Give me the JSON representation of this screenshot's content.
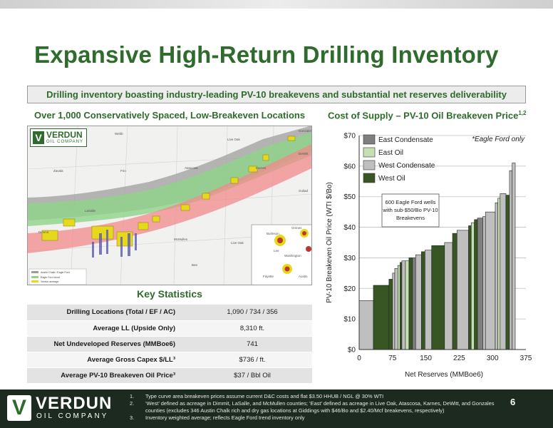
{
  "title": "Expansive High-Return Drilling Inventory",
  "subtitle": "Drilling inventory boasting industry-leading PV-10 breakevens and substantial net reserves deliverability",
  "left_header": "Over 1,000 Conservatively Spaced, Low-Breakeven Locations",
  "right_header": "Cost of Supply – PV-10 Oil Breakeven Price",
  "right_header_sup": "1,2",
  "map": {
    "logo_name": "VERDUN",
    "logo_sub": "OIL COMPANY",
    "labels": [
      "Webb",
      "Dimmit",
      "LaSalle",
      "McMullen",
      "Live Oak",
      "Karnes",
      "Atascosa",
      "Frio",
      "Zavala",
      "DeWitt",
      "Goliad",
      "Gonzales",
      "Bee",
      "Lee",
      "Burleson",
      "Washington",
      "Fayette",
      "Austin",
      "Grimes",
      "Lavaca"
    ],
    "legend": [
      "Austin Chalk / Eagle Ford",
      "Eagle Ford trend",
      "Verdun acreage"
    ]
  },
  "key_stats": {
    "title": "Key Statistics",
    "rows": [
      {
        "label": "Drilling Locations (Total / EF / AC)",
        "value": "1,090 / 734 / 356"
      },
      {
        "label": "Average LL (Upside Only)",
        "value": "8,310 ft."
      },
      {
        "label": "Net Undeveloped Reserves (MMBoe6)",
        "value": "741"
      },
      {
        "label": "Average Gross Capex $/LL³",
        "value": "$736 / ft."
      },
      {
        "label": "Average PV-10 Breakeven Oil Price³",
        "value": "$37 / Bbl Oil"
      }
    ]
  },
  "chart_data": {
    "type": "bar",
    "ylabel": "PV-10 Breakeven Oil Price (WTI $/Bo)",
    "xlabel": "Net Reserves (MMBoe6)",
    "ylim": [
      0,
      70
    ],
    "xlim": [
      0,
      375
    ],
    "yticks": [
      "$0",
      "$10",
      "$20",
      "$30",
      "$40",
      "$50",
      "$60",
      "$70"
    ],
    "xticks": [
      "0",
      "75",
      "150",
      "225",
      "300",
      "375"
    ],
    "annotation_note": "*Eagle Ford only",
    "callout": "600 Eagle Ford wells with sub-$50/Bo PV-10 Breakevens",
    "series": [
      {
        "name": "East Condensate",
        "color": "#7f7f7f"
      },
      {
        "name": "East Oil",
        "color": "#c6e0b4"
      },
      {
        "name": "West Condensate",
        "color": "#bfbfbf"
      },
      {
        "name": "West Oil",
        "color": "#375623"
      }
    ],
    "bars": [
      {
        "x0": 0,
        "x1": 32,
        "y": 16,
        "s": 2
      },
      {
        "x0": 32,
        "x1": 67,
        "y": 21,
        "s": 3
      },
      {
        "x0": 67,
        "x1": 75,
        "y": 23,
        "s": 3
      },
      {
        "x0": 75,
        "x1": 80,
        "y": 25,
        "s": 2
      },
      {
        "x0": 80,
        "x1": 87,
        "y": 26.5,
        "s": 2
      },
      {
        "x0": 87,
        "x1": 92,
        "y": 27.5,
        "s": 1
      },
      {
        "x0": 92,
        "x1": 96,
        "y": 28.5,
        "s": 3
      },
      {
        "x0": 96,
        "x1": 104,
        "y": 29,
        "s": 2
      },
      {
        "x0": 104,
        "x1": 112,
        "y": 29,
        "s": 1
      },
      {
        "x0": 112,
        "x1": 120,
        "y": 30,
        "s": 3
      },
      {
        "x0": 120,
        "x1": 127,
        "y": 30,
        "s": 0
      },
      {
        "x0": 127,
        "x1": 140,
        "y": 31,
        "s": 2
      },
      {
        "x0": 140,
        "x1": 148,
        "y": 32,
        "s": 3
      },
      {
        "x0": 148,
        "x1": 163,
        "y": 32.5,
        "s": 2
      },
      {
        "x0": 163,
        "x1": 192,
        "y": 34,
        "s": 3
      },
      {
        "x0": 192,
        "x1": 210,
        "y": 35,
        "s": 2
      },
      {
        "x0": 210,
        "x1": 220,
        "y": 38,
        "s": 3
      },
      {
        "x0": 220,
        "x1": 246,
        "y": 39,
        "s": 2
      },
      {
        "x0": 246,
        "x1": 252,
        "y": 40.5,
        "s": 3
      },
      {
        "x0": 252,
        "x1": 259,
        "y": 41.5,
        "s": 1
      },
      {
        "x0": 259,
        "x1": 266,
        "y": 42.5,
        "s": 3
      },
      {
        "x0": 266,
        "x1": 278,
        "y": 43,
        "s": 0
      },
      {
        "x0": 278,
        "x1": 284,
        "y": 43.5,
        "s": 2
      },
      {
        "x0": 284,
        "x1": 306,
        "y": 45,
        "s": 2
      },
      {
        "x0": 306,
        "x1": 312,
        "y": 48,
        "s": 2
      },
      {
        "x0": 312,
        "x1": 317,
        "y": 49.5,
        "s": 1
      },
      {
        "x0": 317,
        "x1": 330,
        "y": 51,
        "s": 2
      },
      {
        "x0": 330,
        "x1": 338,
        "y": 50.5,
        "s": 3
      },
      {
        "x0": 338,
        "x1": 344,
        "y": 58.5,
        "s": 2
      },
      {
        "x0": 344,
        "x1": 351,
        "y": 61,
        "s": 2
      }
    ]
  },
  "footer": {
    "logo_name": "VERDUN",
    "logo_sub": "OIL COMPANY",
    "page": "6",
    "notes": [
      {
        "n": "1.",
        "text": "Type curve area breakeven prices assume current D&C costs and flat $3.50 HHUB / NGL @ 30% WTI"
      },
      {
        "n": "2.",
        "text": "‘West’ defined as acreage in Dimmit, LaSalle, and McMullen counties; ‘East’ defined as acreage in Live Oak, Atascosa, Karnes, DeWitt, and Gonzales counties (excludes 346 Austin Chalk rich and dry gas locations at Giddings with $46/Bo and $2.40/Mcf breakevens, respectively)"
      },
      {
        "n": "3.",
        "text": "Inventory weighted average; reflects Eagle Ford trend inventory only"
      }
    ]
  }
}
